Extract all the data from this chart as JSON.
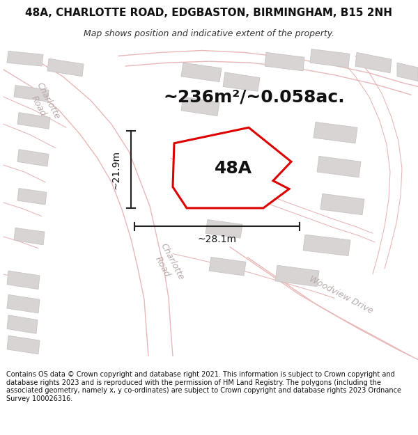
{
  "title": "48A, CHARLOTTE ROAD, EDGBASTON, BIRMINGHAM, B15 2NH",
  "subtitle": "Map shows position and indicative extent of the property.",
  "footer": "Contains OS data © Crown copyright and database right 2021. This information is subject to Crown copyright and database rights 2023 and is reproduced with the permission of HM Land Registry. The polygons (including the associated geometry, namely x, y co-ordinates) are subject to Crown copyright and database rights 2023 Ordnance Survey 100026316.",
  "area_label": "~236m²/~0.058ac.",
  "property_label": "48A",
  "dim_vertical": "~21.9m",
  "dim_horizontal": "~28.1m",
  "bg_color": "#f7f4f4",
  "road_color": "#e8b8b8",
  "building_color": "#d8d4d4",
  "building_edge": "#c8c4c4",
  "property_outline_color": "#dd0000",
  "property_fill": "#ffffff",
  "dimension_color": "#222222",
  "road_label_color": "#b8aaaa",
  "title_fontsize": 11,
  "subtitle_fontsize": 9,
  "footer_fontsize": 7.0,
  "area_fontsize": 18,
  "property_label_fontsize": 18,
  "dim_fontsize": 10,
  "road_label_fontsize": 10
}
